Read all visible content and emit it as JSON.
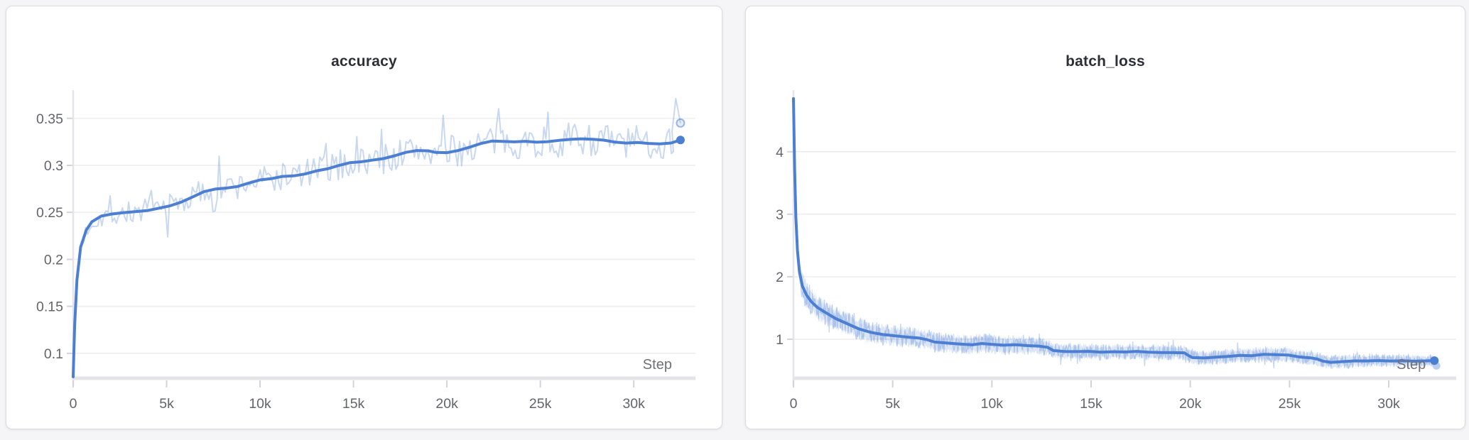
{
  "page": {
    "background": "#f5f5f7"
  },
  "colors": {
    "card_bg": "#ffffff",
    "card_border": "#dcdce0",
    "title": "#2e2f36",
    "grid": "#eeeef1",
    "axis": "#e5e5e9",
    "tick": "#d3d4d9",
    "tick_label": "#63646c",
    "step_label": "#6f7078",
    "smoothed_line": "#4c7ed2",
    "raw_line": "rgba(76,126,210,0.32)",
    "raw_line_soft": "rgba(76,126,210,0.30)",
    "band_fill": "rgba(76,126,210,0.20)",
    "ring_stroke": "rgba(76,126,210,0.55)",
    "ring_fill": "rgba(76,126,210,0.15)",
    "faint_dot": "rgba(76,126,210,0.38)"
  },
  "chart_data": [
    {
      "type": "line",
      "title": "accuracy",
      "xlabel": "Step",
      "step_label": "Step",
      "x_range": [
        0,
        33300
      ],
      "y_range": [
        0.075,
        0.377
      ],
      "x_ticks": [
        {
          "step": 0,
          "label": "0"
        },
        {
          "step": 5000,
          "label": "5k"
        },
        {
          "step": 10000,
          "label": "10k"
        },
        {
          "step": 15000,
          "label": "15k"
        },
        {
          "step": 20000,
          "label": "20k"
        },
        {
          "step": 25000,
          "label": "25k"
        },
        {
          "step": 30000,
          "label": "30k"
        }
      ],
      "y_ticks": [
        {
          "value": 0.1,
          "label": "0.1"
        },
        {
          "value": 0.15,
          "label": "0.15"
        },
        {
          "value": 0.2,
          "label": "0.2"
        },
        {
          "value": 0.25,
          "label": "0.25"
        },
        {
          "value": 0.3,
          "label": "0.3"
        },
        {
          "value": 0.35,
          "label": "0.35"
        }
      ],
      "grid": true,
      "legend": "none",
      "series": [
        {
          "name": "accuracy (smoothed)",
          "role": "smoothed",
          "points": [
            [
              0,
              0.075
            ],
            [
              80,
              0.13
            ],
            [
              200,
              0.178
            ],
            [
              400,
              0.213
            ],
            [
              700,
              0.231
            ],
            [
              1000,
              0.24
            ],
            [
              1500,
              0.246
            ],
            [
              2000,
              0.248
            ],
            [
              2600,
              0.2495
            ],
            [
              3200,
              0.2505
            ],
            [
              4000,
              0.252
            ],
            [
              4600,
              0.2545
            ],
            [
              5200,
              0.257
            ],
            [
              5800,
              0.261
            ],
            [
              6400,
              0.2665
            ],
            [
              7000,
              0.272
            ],
            [
              7600,
              0.2748
            ],
            [
              8200,
              0.2758
            ],
            [
              8800,
              0.2775
            ],
            [
              9400,
              0.2812
            ],
            [
              10000,
              0.2845
            ],
            [
              10600,
              0.2858
            ],
            [
              11200,
              0.2882
            ],
            [
              11800,
              0.2888
            ],
            [
              12400,
              0.2908
            ],
            [
              13000,
              0.294
            ],
            [
              13600,
              0.2963
            ],
            [
              14200,
              0.2998
            ],
            [
              14800,
              0.3028
            ],
            [
              15400,
              0.3038
            ],
            [
              16000,
              0.3055
            ],
            [
              16600,
              0.3072
            ],
            [
              17200,
              0.3102
            ],
            [
              17800,
              0.3138
            ],
            [
              18400,
              0.3158
            ],
            [
              19000,
              0.3155
            ],
            [
              19400,
              0.3137
            ],
            [
              20000,
              0.3135
            ],
            [
              20600,
              0.3158
            ],
            [
              21200,
              0.3192
            ],
            [
              21800,
              0.3232
            ],
            [
              22400,
              0.3258
            ],
            [
              23000,
              0.3255
            ],
            [
              23600,
              0.325
            ],
            [
              24200,
              0.3256
            ],
            [
              24800,
              0.3246
            ],
            [
              25400,
              0.3252
            ],
            [
              26000,
              0.3266
            ],
            [
              26600,
              0.3276
            ],
            [
              27200,
              0.3282
            ],
            [
              27800,
              0.3278
            ],
            [
              28400,
              0.3268
            ],
            [
              29000,
              0.3247
            ],
            [
              29600,
              0.3237
            ],
            [
              30200,
              0.3243
            ],
            [
              30800,
              0.3233
            ],
            [
              31400,
              0.3228
            ],
            [
              32000,
              0.3238
            ],
            [
              32500,
              0.327
            ]
          ]
        },
        {
          "name": "accuracy (raw)",
          "role": "raw",
          "style": "noisy-line",
          "sample_step": 110,
          "seed": 7,
          "noise_amplitude": [
            [
              0,
              0.003
            ],
            [
              300,
              0.008
            ],
            [
              1000,
              0.012
            ],
            [
              3000,
              0.013
            ],
            [
              8000,
              0.015
            ],
            [
              15000,
              0.017
            ],
            [
              25000,
              0.018
            ],
            [
              32000,
              0.018
            ]
          ],
          "spike_probability": 0.07,
          "spike_multiplier": 2.4,
          "clamp": [
            0.076,
            0.3765
          ],
          "tail_points": [
            [
              32050,
              0.336
            ],
            [
              32250,
              0.371
            ],
            [
              32500,
              0.345
            ]
          ]
        }
      ],
      "end_markers": [
        {
          "series": "smoothed",
          "step": 32500,
          "value": 0.327,
          "style": "solid"
        },
        {
          "series": "raw",
          "step": 32500,
          "value": 0.345,
          "style": "ring"
        }
      ]
    },
    {
      "type": "line",
      "title": "batch_loss",
      "xlabel": "Step",
      "step_label": "Step",
      "x_range": [
        0,
        33400
      ],
      "y_range": [
        0.398,
        4.94
      ],
      "x_ticks": [
        {
          "step": 0,
          "label": "0"
        },
        {
          "step": 5000,
          "label": "5k"
        },
        {
          "step": 10000,
          "label": "10k"
        },
        {
          "step": 15000,
          "label": "15k"
        },
        {
          "step": 20000,
          "label": "20k"
        },
        {
          "step": 25000,
          "label": "25k"
        },
        {
          "step": 30000,
          "label": "30k"
        }
      ],
      "y_ticks": [
        {
          "value": 1,
          "label": "1"
        },
        {
          "value": 2,
          "label": "2"
        },
        {
          "value": 3,
          "label": "3"
        },
        {
          "value": 4,
          "label": "4"
        }
      ],
      "grid": true,
      "legend": "none",
      "series": [
        {
          "name": "batch_loss (smoothed)",
          "role": "smoothed",
          "points": [
            [
              0,
              4.85
            ],
            [
              60,
              3.7
            ],
            [
              120,
              2.95
            ],
            [
              200,
              2.42
            ],
            [
              300,
              2.08
            ],
            [
              450,
              1.85
            ],
            [
              650,
              1.71
            ],
            [
              900,
              1.6
            ],
            [
              1200,
              1.51
            ],
            [
              1600,
              1.43
            ],
            [
              2100,
              1.335
            ],
            [
              2700,
              1.25
            ],
            [
              3300,
              1.165
            ],
            [
              3900,
              1.11
            ],
            [
              4500,
              1.075
            ],
            [
              5100,
              1.055
            ],
            [
              5700,
              1.035
            ],
            [
              6300,
              1.02
            ],
            [
              6700,
              0.995
            ],
            [
              7100,
              0.955
            ],
            [
              7700,
              0.94
            ],
            [
              8300,
              0.925
            ],
            [
              9000,
              0.91
            ],
            [
              9500,
              0.932
            ],
            [
              10000,
              0.918
            ],
            [
              10600,
              0.905
            ],
            [
              11200,
              0.912
            ],
            [
              11800,
              0.898
            ],
            [
              12400,
              0.888
            ],
            [
              12800,
              0.872
            ],
            [
              13100,
              0.818
            ],
            [
              13700,
              0.802
            ],
            [
              14300,
              0.802
            ],
            [
              14900,
              0.806
            ],
            [
              15500,
              0.792
            ],
            [
              16100,
              0.8
            ],
            [
              16700,
              0.795
            ],
            [
              17300,
              0.806
            ],
            [
              17900,
              0.792
            ],
            [
              18500,
              0.788
            ],
            [
              19100,
              0.785
            ],
            [
              19700,
              0.783
            ],
            [
              19900,
              0.74
            ],
            [
              20100,
              0.706
            ],
            [
              20700,
              0.7
            ],
            [
              21300,
              0.712
            ],
            [
              21900,
              0.725
            ],
            [
              22500,
              0.742
            ],
            [
              23100,
              0.736
            ],
            [
              23700,
              0.758
            ],
            [
              24300,
              0.753
            ],
            [
              24900,
              0.748
            ],
            [
              25500,
              0.716
            ],
            [
              26100,
              0.7
            ],
            [
              26400,
              0.682
            ],
            [
              26700,
              0.648
            ],
            [
              27100,
              0.63
            ],
            [
              27700,
              0.642
            ],
            [
              28300,
              0.654
            ],
            [
              28900,
              0.652
            ],
            [
              29500,
              0.658
            ],
            [
              30100,
              0.65
            ],
            [
              30700,
              0.655
            ],
            [
              31300,
              0.649
            ],
            [
              31900,
              0.653
            ],
            [
              32300,
              0.658
            ]
          ]
        },
        {
          "name": "batch_loss (raw)",
          "role": "raw",
          "style": "noisy-band",
          "sample_step": 30,
          "seed": 13,
          "noise_amplitude": [
            [
              0,
              0.04
            ],
            [
              150,
              0.18
            ],
            [
              400,
              0.24
            ],
            [
              1000,
              0.23
            ],
            [
              2000,
              0.2
            ],
            [
              4000,
              0.18
            ],
            [
              7000,
              0.17
            ],
            [
              10000,
              0.17
            ],
            [
              13000,
              0.14
            ],
            [
              16000,
              0.13
            ],
            [
              19500,
              0.13
            ],
            [
              20000,
              0.12
            ],
            [
              24000,
              0.13
            ],
            [
              26500,
              0.12
            ],
            [
              30000,
              0.11
            ],
            [
              32300,
              0.1
            ]
          ],
          "spike_probability": 0.04,
          "spike_multiplier": 1.8,
          "clamp": [
            0.43,
            4.93
          ],
          "tail_points": [
            [
              32300,
              0.6
            ]
          ]
        }
      ],
      "end_markers": [
        {
          "series": "smoothed",
          "step": 32300,
          "value": 0.658,
          "style": "solid"
        },
        {
          "series": "raw",
          "step": 32400,
          "value": 0.575,
          "style": "faint"
        }
      ]
    }
  ]
}
